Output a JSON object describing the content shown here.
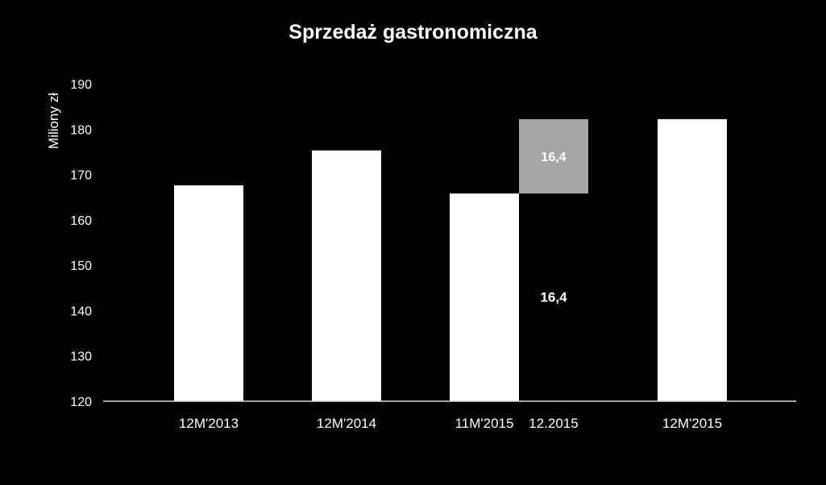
{
  "chart_data": {
    "type": "bar",
    "title": "Sprzedaż gastronomiczna",
    "ylabel": "Miliony zł",
    "xlabel": "",
    "ylim": [
      120,
      190
    ],
    "yticks": [
      120,
      130,
      140,
      150,
      160,
      170,
      180,
      190
    ],
    "grid": false,
    "categories": [
      "12M'2013",
      "12M'2014",
      "11M'2015",
      "12.2015",
      "12M'2015"
    ],
    "bars": [
      {
        "category": "12M'2013",
        "base": 120,
        "value": 167.6,
        "color": "#ffffff"
      },
      {
        "category": "12M'2014",
        "base": 120,
        "value": 175.3,
        "color": "#ffffff"
      },
      {
        "category": "11M'2015",
        "base": 120,
        "value": 165.8,
        "color": "#ffffff"
      },
      {
        "category": "12.2015",
        "base": 165.8,
        "value": 182.2,
        "color": "#a6a6a6",
        "label": "16,4"
      },
      {
        "category": "12M'2015",
        "base": 120,
        "value": 182.2,
        "color": "#ffffff"
      }
    ],
    "annotations": [
      {
        "category": "12.2015",
        "y": 143,
        "text": "16,4"
      }
    ]
  }
}
